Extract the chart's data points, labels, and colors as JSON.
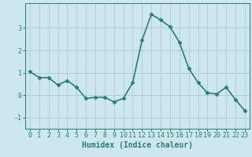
{
  "x": [
    0,
    1,
    2,
    3,
    4,
    5,
    6,
    7,
    8,
    9,
    10,
    11,
    12,
    13,
    14,
    15,
    16,
    17,
    18,
    19,
    20,
    21,
    22,
    23
  ],
  "y": [
    1.05,
    0.78,
    0.78,
    0.45,
    0.65,
    0.35,
    -0.15,
    -0.1,
    -0.1,
    -0.3,
    -0.15,
    0.55,
    2.45,
    3.6,
    3.35,
    3.05,
    2.35,
    1.2,
    0.55,
    0.1,
    0.05,
    0.35,
    -0.2,
    -0.7
  ],
  "line_color": "#2e7d6e",
  "marker": "D",
  "marker_size": 2.5,
  "bg_color": "#cce8ec",
  "grid_color": "#b0d0d5",
  "xlabel": "Humidex (Indice chaleur)",
  "ylim": [
    -1.5,
    4.1
  ],
  "xlim": [
    -0.5,
    23.5
  ],
  "yticks": [
    -1,
    0,
    1,
    2,
    3
  ],
  "xticks": [
    0,
    1,
    2,
    3,
    4,
    5,
    6,
    7,
    8,
    9,
    10,
    11,
    12,
    13,
    14,
    15,
    16,
    17,
    18,
    19,
    20,
    21,
    22,
    23
  ],
  "tick_color": "#2e7d6e",
  "label_fontsize": 7,
  "tick_fontsize": 6,
  "linewidth": 1.2
}
